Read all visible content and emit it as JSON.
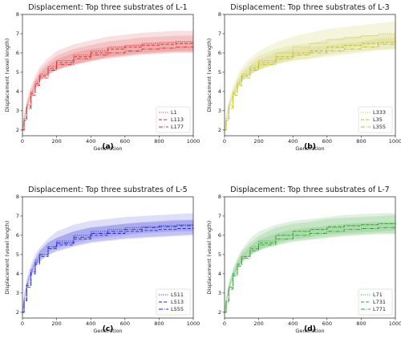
{
  "chart_data": [
    {
      "type": "line",
      "panel_label": "(a)",
      "title": "Displacement: Top three substrates of L-1",
      "xlabel": "Generation",
      "ylabel": "Displacement (voxel length)",
      "xlim": [
        0,
        1000
      ],
      "ylim": [
        1.7,
        8.0
      ],
      "xticks": [
        0,
        200,
        400,
        600,
        800,
        1000
      ],
      "yticks": [
        2,
        3,
        4,
        5,
        6,
        7,
        8
      ],
      "color": "#d62728",
      "legend_position": "lower right",
      "x": [
        0,
        10,
        25,
        50,
        75,
        100,
        150,
        200,
        300,
        400,
        500,
        600,
        700,
        800,
        900,
        1000
      ],
      "series": [
        {
          "name": "L1",
          "dash": "dotted",
          "values": [
            2.0,
            2.6,
            3.3,
            4.0,
            4.5,
            4.9,
            5.3,
            5.6,
            5.9,
            6.1,
            6.3,
            6.4,
            6.5,
            6.55,
            6.6,
            6.6
          ]
        },
        {
          "name": "L113",
          "dash": "dashed",
          "values": [
            2.0,
            2.5,
            3.2,
            3.9,
            4.4,
            4.8,
            5.2,
            5.5,
            5.8,
            6.0,
            6.2,
            6.3,
            6.4,
            6.45,
            6.5,
            6.5
          ]
        },
        {
          "name": "L177",
          "dash": "dashdot",
          "values": [
            2.0,
            2.5,
            3.1,
            3.8,
            4.3,
            4.7,
            5.1,
            5.4,
            5.7,
            5.9,
            6.0,
            6.1,
            6.2,
            6.25,
            6.3,
            6.3
          ]
        }
      ]
    },
    {
      "type": "line",
      "panel_label": "(b)",
      "title": "Displacement: Top three substrates of L-3",
      "xlabel": "Generation",
      "ylabel": "Displacement (voxel length)",
      "xlim": [
        0,
        1000
      ],
      "ylim": [
        1.7,
        8.0
      ],
      "xticks": [
        0,
        200,
        400,
        600,
        800,
        1000
      ],
      "yticks": [
        2,
        3,
        4,
        5,
        6,
        7,
        8
      ],
      "color": "#bcbd22",
      "legend_position": "lower right",
      "x": [
        0,
        10,
        25,
        50,
        75,
        100,
        150,
        200,
        300,
        400,
        500,
        600,
        700,
        800,
        900,
        1000
      ],
      "series": [
        {
          "name": "L333",
          "dash": "dotted",
          "values": [
            2.0,
            2.6,
            3.3,
            4.0,
            4.5,
            4.9,
            5.3,
            5.6,
            6.0,
            6.3,
            6.5,
            6.7,
            6.8,
            6.9,
            7.0,
            7.1
          ]
        },
        {
          "name": "L35",
          "dash": "dashed",
          "values": [
            2.0,
            2.5,
            3.2,
            3.9,
            4.4,
            4.8,
            5.2,
            5.5,
            5.8,
            6.0,
            6.1,
            6.3,
            6.4,
            6.5,
            6.55,
            6.6
          ]
        },
        {
          "name": "L355",
          "dash": "dashdot",
          "values": [
            2.0,
            2.5,
            3.1,
            3.8,
            4.3,
            4.7,
            5.1,
            5.4,
            5.7,
            5.9,
            6.0,
            6.1,
            6.2,
            6.3,
            6.45,
            6.5
          ]
        }
      ]
    },
    {
      "type": "line",
      "panel_label": "(c)",
      "title": "Displacement: Top three substrates of L-5",
      "xlabel": "Generation",
      "ylabel": "Displacement (voxel length)",
      "xlim": [
        0,
        1000
      ],
      "ylim": [
        1.7,
        8.0
      ],
      "xticks": [
        0,
        200,
        400,
        600,
        800,
        1000
      ],
      "yticks": [
        2,
        3,
        4,
        5,
        6,
        7,
        8
      ],
      "color": "#1f1fd6",
      "legend_position": "lower right",
      "x": [
        0,
        10,
        25,
        50,
        75,
        100,
        150,
        200,
        300,
        400,
        500,
        600,
        700,
        800,
        900,
        1000
      ],
      "series": [
        {
          "name": "L511",
          "dash": "dotted",
          "values": [
            2.0,
            2.7,
            3.5,
            4.2,
            4.7,
            5.0,
            5.4,
            5.7,
            6.0,
            6.2,
            6.3,
            6.4,
            6.45,
            6.5,
            6.55,
            6.6
          ]
        },
        {
          "name": "L513",
          "dash": "dashed",
          "values": [
            2.0,
            2.6,
            3.3,
            4.0,
            4.5,
            4.9,
            5.3,
            5.5,
            5.8,
            6.0,
            6.1,
            6.2,
            6.25,
            6.3,
            6.35,
            6.4
          ]
        },
        {
          "name": "L555",
          "dash": "dashdot",
          "values": [
            2.0,
            2.6,
            3.4,
            4.1,
            4.6,
            5.0,
            5.4,
            5.6,
            5.9,
            6.1,
            6.2,
            6.3,
            6.4,
            6.45,
            6.5,
            6.5
          ]
        }
      ]
    },
    {
      "type": "line",
      "panel_label": "(d)",
      "title": "Displacement: Top three substrates of L-7",
      "xlabel": "Generation",
      "ylabel": "Displacement (voxel length)",
      "xlim": [
        0,
        1000
      ],
      "ylim": [
        1.7,
        8.0
      ],
      "xticks": [
        0,
        200,
        400,
        600,
        800,
        1000
      ],
      "yticks": [
        2,
        3,
        4,
        5,
        6,
        7,
        8
      ],
      "color": "#2ca02c",
      "legend_position": "lower right",
      "x": [
        0,
        10,
        25,
        50,
        75,
        100,
        150,
        200,
        300,
        400,
        500,
        600,
        700,
        800,
        900,
        1000
      ],
      "series": [
        {
          "name": "L71",
          "dash": "dotted",
          "values": [
            2.0,
            2.6,
            3.3,
            4.0,
            4.5,
            4.9,
            5.4,
            5.7,
            6.0,
            6.2,
            6.3,
            6.4,
            6.5,
            6.55,
            6.6,
            6.6
          ]
        },
        {
          "name": "L731",
          "dash": "dashed",
          "values": [
            2.0,
            2.6,
            3.3,
            4.0,
            4.5,
            4.9,
            5.3,
            5.6,
            6.0,
            6.2,
            6.3,
            6.45,
            6.5,
            6.55,
            6.6,
            6.65
          ]
        },
        {
          "name": "L771",
          "dash": "dashdot",
          "values": [
            2.0,
            2.5,
            3.2,
            3.9,
            4.4,
            4.8,
            5.2,
            5.5,
            5.8,
            6.0,
            6.1,
            6.2,
            6.3,
            6.35,
            6.4,
            6.4
          ]
        }
      ]
    }
  ]
}
